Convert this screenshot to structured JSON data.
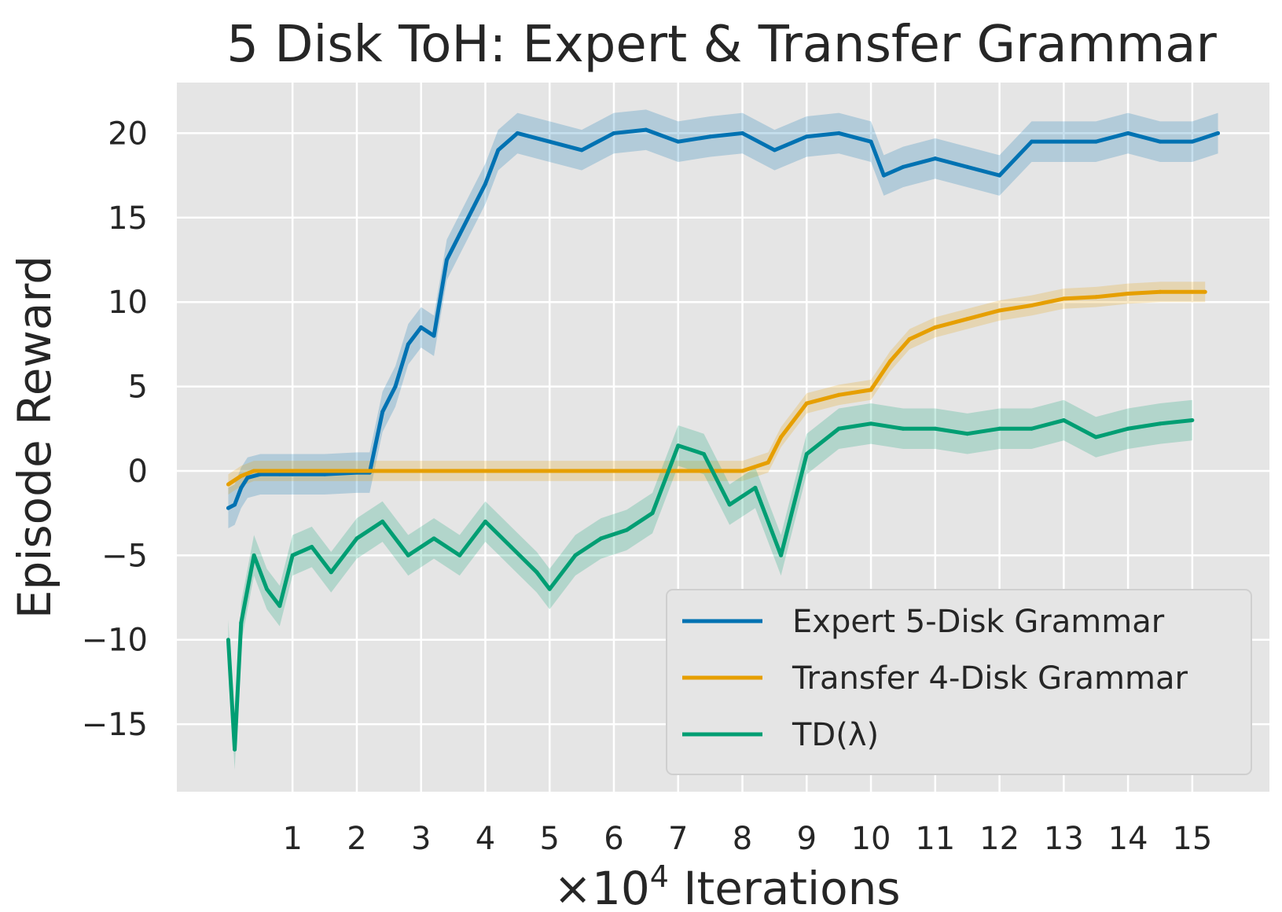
{
  "chart_data": {
    "type": "line",
    "title": "5 Disk ToH: Expert & Transfer Grammar",
    "xlabel_prefix": "×10",
    "xlabel_exp": "4",
    "xlabel_suffix": " Iterations",
    "ylabel": "Episode Reward",
    "xlim": [
      -0.8,
      16.2
    ],
    "ylim": [
      -19,
      23
    ],
    "xticks": [
      "1",
      "2",
      "3",
      "4",
      "5",
      "6",
      "7",
      "8",
      "9",
      "10",
      "11",
      "12",
      "13",
      "14",
      "15"
    ],
    "yticks": [
      {
        "v": -15,
        "label": "−15"
      },
      {
        "v": -10,
        "label": "−10"
      },
      {
        "v": -5,
        "label": "−5"
      },
      {
        "v": 0,
        "label": "0"
      },
      {
        "v": 5,
        "label": "5"
      },
      {
        "v": 10,
        "label": "10"
      },
      {
        "v": 15,
        "label": "15"
      },
      {
        "v": 20,
        "label": "20"
      }
    ],
    "grid": true,
    "legend": "lower-right",
    "colors": {
      "expert": "#0072b2",
      "transfer": "#e69f00",
      "td": "#009e73",
      "background": "#e5e5e5",
      "grid": "#ffffff"
    },
    "series": [
      {
        "name": "Expert 5-Disk Grammar",
        "key": "expert",
        "x": [
          0,
          0.1,
          0.2,
          0.3,
          0.5,
          0.8,
          1.0,
          1.5,
          2.0,
          2.2,
          2.4,
          2.6,
          2.8,
          3.0,
          3.2,
          3.4,
          3.6,
          3.8,
          4.0,
          4.2,
          4.5,
          5.0,
          5.5,
          6.0,
          6.5,
          7.0,
          7.5,
          8.0,
          8.5,
          9.0,
          9.5,
          10.0,
          10.2,
          10.5,
          11.0,
          11.5,
          12.0,
          12.5,
          13.0,
          13.5,
          14.0,
          14.5,
          15.0,
          15.4
        ],
        "y": [
          -2.2,
          -2.0,
          -1.0,
          -0.4,
          -0.2,
          -0.2,
          -0.2,
          -0.2,
          -0.1,
          -0.1,
          3.5,
          5.0,
          7.5,
          8.5,
          8.0,
          12.5,
          14.0,
          15.5,
          17.0,
          19.0,
          20.0,
          19.5,
          19.0,
          20.0,
          20.2,
          19.5,
          19.8,
          20.0,
          19.0,
          19.8,
          20.0,
          19.5,
          17.5,
          18.0,
          18.5,
          18.0,
          17.5,
          19.5,
          19.5,
          19.5,
          20.0,
          19.5,
          19.5,
          20.0
        ]
      },
      {
        "name": "Transfer 4-Disk Grammar",
        "key": "transfer",
        "x": [
          0,
          0.2,
          0.4,
          1.0,
          2.0,
          3.0,
          4.0,
          5.0,
          6.0,
          7.0,
          8.0,
          8.4,
          8.6,
          9.0,
          9.5,
          10.0,
          10.3,
          10.6,
          11.0,
          11.5,
          12.0,
          12.5,
          13.0,
          13.5,
          14.0,
          14.5,
          15.0,
          15.2
        ],
        "y": [
          -0.8,
          -0.3,
          0,
          0,
          0,
          0,
          0,
          0,
          0,
          0,
          0,
          0.5,
          2.0,
          4.0,
          4.5,
          4.8,
          6.5,
          7.8,
          8.5,
          9.0,
          9.5,
          9.8,
          10.2,
          10.3,
          10.5,
          10.6,
          10.6,
          10.6
        ]
      },
      {
        "name": "TD(λ)",
        "key": "td",
        "x": [
          0,
          0.1,
          0.2,
          0.4,
          0.6,
          0.8,
          1.0,
          1.3,
          1.6,
          2.0,
          2.4,
          2.8,
          3.2,
          3.6,
          4.0,
          4.4,
          4.8,
          5.0,
          5.4,
          5.8,
          6.2,
          6.6,
          7.0,
          7.4,
          7.8,
          8.2,
          8.6,
          9.0,
          9.5,
          10.0,
          10.5,
          11.0,
          11.5,
          12.0,
          12.5,
          13.0,
          13.5,
          14.0,
          14.5,
          15.0
        ],
        "y": [
          -10,
          -16.5,
          -9,
          -5,
          -7,
          -8,
          -5,
          -4.5,
          -6,
          -4,
          -3,
          -5,
          -4,
          -5,
          -3,
          -4.5,
          -6,
          -7,
          -5,
          -4,
          -3.5,
          -2.5,
          1.5,
          1,
          -2,
          -1,
          -5,
          1,
          2.5,
          2.8,
          2.5,
          2.5,
          2.2,
          2.5,
          2.5,
          3.0,
          2.0,
          2.5,
          2.8,
          3.0
        ]
      }
    ]
  }
}
